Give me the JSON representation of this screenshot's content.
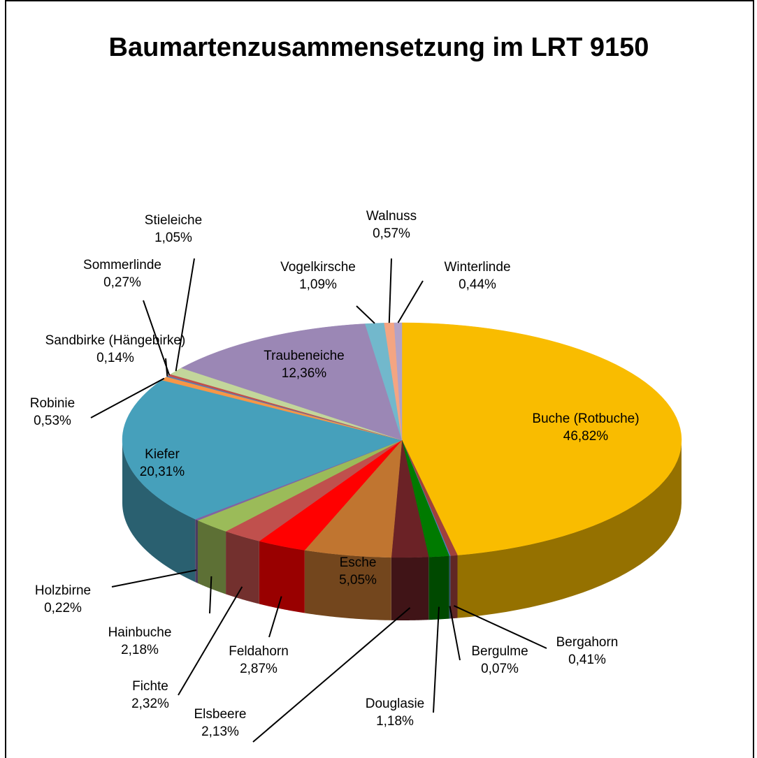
{
  "chart_data": {
    "type": "pie3d",
    "title": "Baumartenzusammensetzung im LRT 9150",
    "categories": [
      "Buche (Rotbuche)",
      "Bergahorn",
      "Bergulme",
      "Douglasie",
      "Elsbeere",
      "Esche",
      "Feldahorn",
      "Fichte",
      "Hainbuche",
      "Holzbirne",
      "Kiefer",
      "Robinie",
      "Sandbirke (Hängebirke)",
      "Sommerlinde",
      "Stieleiche",
      "Traubeneiche",
      "Vogelkirsche",
      "Walnuss",
      "Winterlinde"
    ],
    "values": [
      46.82,
      0.41,
      0.07,
      1.18,
      2.13,
      5.05,
      2.87,
      2.32,
      2.18,
      0.22,
      20.31,
      0.53,
      0.14,
      0.27,
      1.05,
      12.36,
      1.09,
      0.57,
      0.44
    ],
    "value_labels": [
      "46,82%",
      "0,41%",
      "0,07%",
      "1,18%",
      "2,13%",
      "5,05%",
      "2,87%",
      "2,32%",
      "2,18%",
      "0,22%",
      "20,31%",
      "0,53%",
      "0,14%",
      "0,27%",
      "1,05%",
      "12,36%",
      "1,09%",
      "0,57%",
      "0,44%"
    ],
    "colors": [
      "#f9bc00",
      "#a0413c",
      "#4a7ebb",
      "#007a00",
      "#6b2226",
      "#c07530",
      "#ff0000",
      "#c0504d",
      "#9bbb59",
      "#8064a2",
      "#46a0bb",
      "#f79646",
      "#4f81bd",
      "#c0504d",
      "#c3d69b",
      "#9b87b5",
      "#72b8cc",
      "#f4a582",
      "#b3a2c7"
    ]
  }
}
